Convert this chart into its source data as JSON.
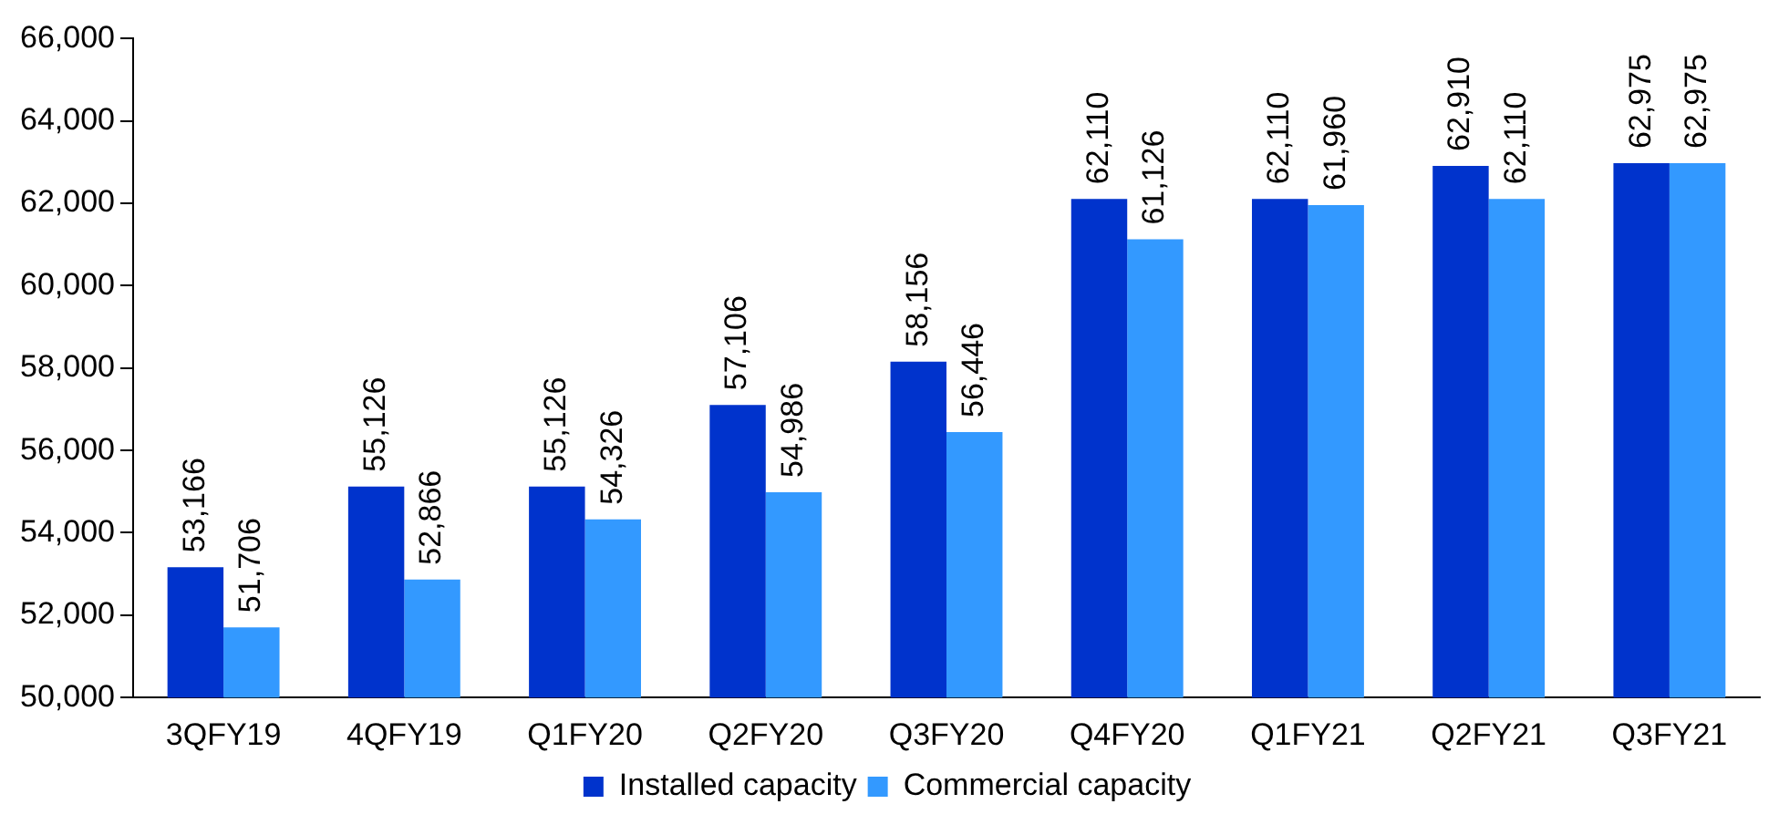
{
  "chart_data": {
    "type": "bar",
    "categories": [
      "3QFY19",
      "4QFY19",
      "Q1FY20",
      "Q2FY20",
      "Q3FY20",
      "Q4FY20",
      "Q1FY21",
      "Q2FY21",
      "Q3FY21"
    ],
    "series": [
      {
        "name": "Installed capacity",
        "color": "#0033cc",
        "values": [
          53166,
          55126,
          55126,
          57106,
          58156,
          62110,
          62110,
          62910,
          62975
        ],
        "value_labels": [
          "53,166",
          "55,126",
          "55,126",
          "57,106",
          "58,156",
          "62,110",
          "62,110",
          "62,910",
          "62,975"
        ]
      },
      {
        "name": "Commercial capacity",
        "color": "#3399ff",
        "values": [
          51706,
          52866,
          54326,
          54986,
          56446,
          61126,
          61960,
          62110,
          62975
        ],
        "value_labels": [
          "51,706",
          "52,866",
          "54,326",
          "54,986",
          "56,446",
          "61,126",
          "61,960",
          "62,110",
          "62,975"
        ]
      }
    ],
    "ylim": [
      50000,
      66000
    ],
    "yticks": [
      {
        "value": 50000,
        "label": "50,000"
      },
      {
        "value": 52000,
        "label": "52,000"
      },
      {
        "value": 54000,
        "label": "54,000"
      },
      {
        "value": 56000,
        "label": "56,000"
      },
      {
        "value": 58000,
        "label": "58,000"
      },
      {
        "value": 60000,
        "label": "60,000"
      },
      {
        "value": 62000,
        "label": "62,000"
      },
      {
        "value": 64000,
        "label": "64,000"
      },
      {
        "value": 66000,
        "label": "66,000"
      }
    ],
    "grid": false,
    "legend": "bottom"
  }
}
